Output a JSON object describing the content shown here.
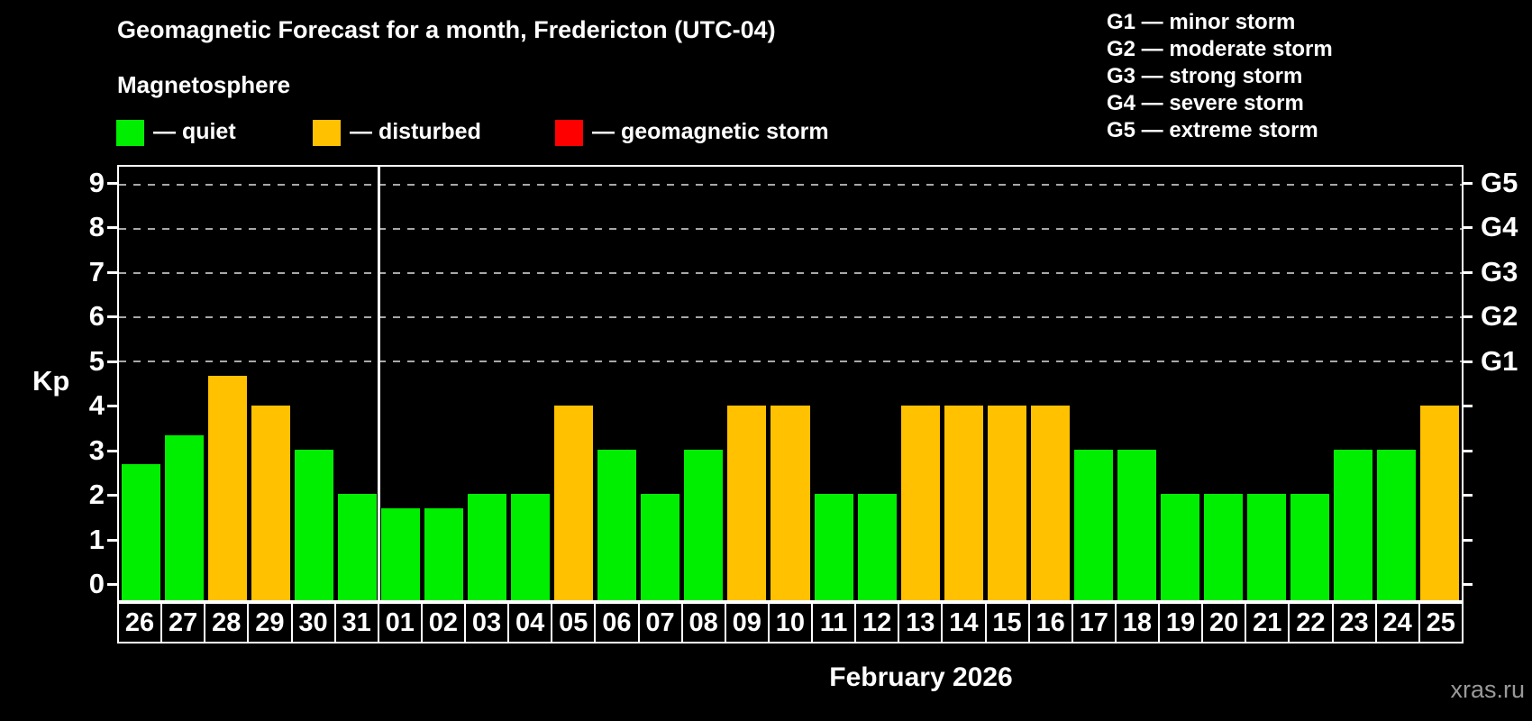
{
  "header": {
    "title": "Geomagnetic Forecast for a month, Fredericton (UTC-04)",
    "subtitle": "Magnetosphere"
  },
  "legend": {
    "quiet": {
      "label": "— quiet",
      "color": "#00ee00"
    },
    "disturbed": {
      "label": "— disturbed",
      "color": "#ffc100"
    },
    "storm": {
      "label": "— geomagnetic storm",
      "color": "#ff0000"
    }
  },
  "g_legend": {
    "items": [
      "G1 — minor storm",
      "G2 — moderate storm",
      "G3 — strong storm",
      "G4 — severe storm",
      "G5 — extreme storm"
    ]
  },
  "axis": {
    "y_label": "Kp",
    "left_ticks": [
      "0",
      "1",
      "2",
      "3",
      "4",
      "5",
      "6",
      "7",
      "8",
      "9"
    ],
    "right_labels": [
      {
        "kp": 5,
        "label": "G1"
      },
      {
        "kp": 6,
        "label": "G2"
      },
      {
        "kp": 7,
        "label": "G3"
      },
      {
        "kp": 8,
        "label": "G4"
      },
      {
        "kp": 9,
        "label": "G5"
      }
    ]
  },
  "footer": {
    "month_label": "February 2026",
    "watermark": "xras.ru"
  },
  "chart_data": {
    "type": "bar",
    "title": "Geomagnetic Forecast for a month, Fredericton (UTC-04)",
    "ylabel": "Kp",
    "ylim": [
      -0.4,
      9.4
    ],
    "gridlines_at": [
      5,
      6,
      7,
      8,
      9
    ],
    "grid": "dashed, G-storm levels only",
    "legend_position": "top",
    "month_separator_after_index": 5,
    "status_colors": {
      "quiet": "#00ee00",
      "disturbed": "#ffc100",
      "storm": "#ff0000"
    },
    "categories": [
      "26",
      "27",
      "28",
      "29",
      "30",
      "31",
      "01",
      "02",
      "03",
      "04",
      "05",
      "06",
      "07",
      "08",
      "09",
      "10",
      "11",
      "12",
      "13",
      "14",
      "15",
      "16",
      "17",
      "18",
      "19",
      "20",
      "21",
      "22",
      "23",
      "24",
      "25"
    ],
    "points": [
      {
        "day": "26",
        "kp": 2.67,
        "status": "quiet"
      },
      {
        "day": "27",
        "kp": 3.33,
        "status": "quiet"
      },
      {
        "day": "28",
        "kp": 4.67,
        "status": "disturbed"
      },
      {
        "day": "29",
        "kp": 4.0,
        "status": "disturbed"
      },
      {
        "day": "30",
        "kp": 3.0,
        "status": "quiet"
      },
      {
        "day": "31",
        "kp": 2.0,
        "status": "quiet"
      },
      {
        "day": "01",
        "kp": 1.67,
        "status": "quiet"
      },
      {
        "day": "02",
        "kp": 1.67,
        "status": "quiet"
      },
      {
        "day": "03",
        "kp": 2.0,
        "status": "quiet"
      },
      {
        "day": "04",
        "kp": 2.0,
        "status": "quiet"
      },
      {
        "day": "05",
        "kp": 4.0,
        "status": "disturbed"
      },
      {
        "day": "06",
        "kp": 3.0,
        "status": "quiet"
      },
      {
        "day": "07",
        "kp": 2.0,
        "status": "quiet"
      },
      {
        "day": "08",
        "kp": 3.0,
        "status": "quiet"
      },
      {
        "day": "09",
        "kp": 4.0,
        "status": "disturbed"
      },
      {
        "day": "10",
        "kp": 4.0,
        "status": "disturbed"
      },
      {
        "day": "11",
        "kp": 2.0,
        "status": "quiet"
      },
      {
        "day": "12",
        "kp": 2.0,
        "status": "quiet"
      },
      {
        "day": "13",
        "kp": 4.0,
        "status": "disturbed"
      },
      {
        "day": "14",
        "kp": 4.0,
        "status": "disturbed"
      },
      {
        "day": "15",
        "kp": 4.0,
        "status": "disturbed"
      },
      {
        "day": "16",
        "kp": 4.0,
        "status": "disturbed"
      },
      {
        "day": "17",
        "kp": 3.0,
        "status": "quiet"
      },
      {
        "day": "18",
        "kp": 3.0,
        "status": "quiet"
      },
      {
        "day": "19",
        "kp": 2.0,
        "status": "quiet"
      },
      {
        "day": "20",
        "kp": 2.0,
        "status": "quiet"
      },
      {
        "day": "21",
        "kp": 2.0,
        "status": "quiet"
      },
      {
        "day": "22",
        "kp": 2.0,
        "status": "quiet"
      },
      {
        "day": "23",
        "kp": 3.0,
        "status": "quiet"
      },
      {
        "day": "24",
        "kp": 3.0,
        "status": "quiet"
      },
      {
        "day": "25",
        "kp": 4.0,
        "status": "disturbed"
      }
    ]
  }
}
